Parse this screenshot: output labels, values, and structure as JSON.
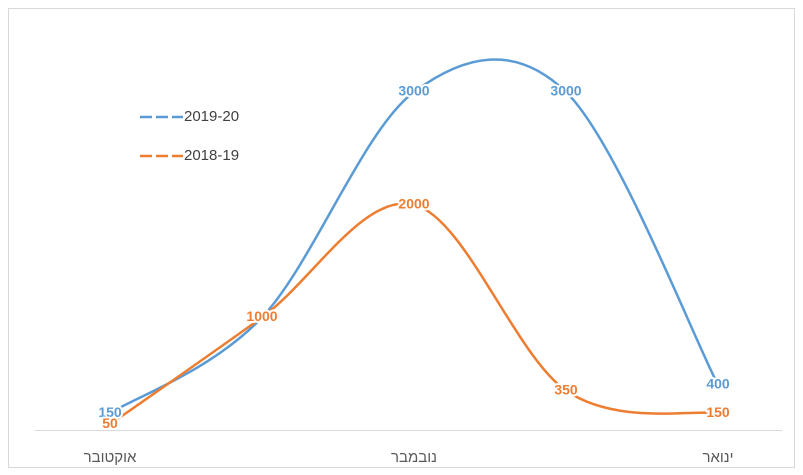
{
  "chart_data": {
    "type": "line",
    "categories": [
      "אוקטובר",
      null,
      "נובמבר",
      null,
      "ינואר"
    ],
    "series": [
      {
        "name": "2019-20",
        "color": "#5b9bd5",
        "values": [
          150,
          1000,
          3000,
          3000,
          400
        ]
      },
      {
        "name": "2018-19",
        "color": "#ed7d31",
        "values": [
          50,
          1000,
          2000,
          350,
          150
        ]
      }
    ],
    "smooth": true,
    "legend": "top-left"
  }
}
